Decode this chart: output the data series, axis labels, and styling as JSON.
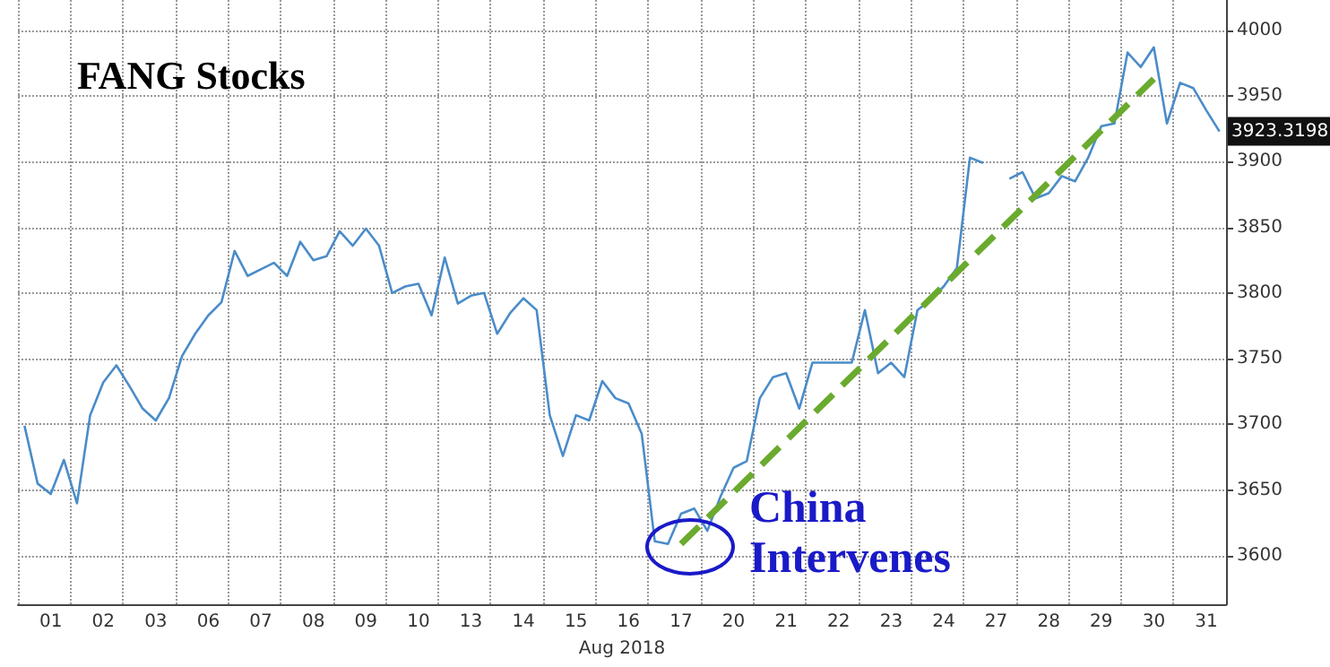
{
  "chart_data": {
    "type": "line",
    "title": "FANG Stocks",
    "xlabel": "Aug 2018",
    "categories": [
      null,
      null,
      "01",
      null,
      null,
      null,
      "02",
      null,
      null,
      null,
      "03",
      null,
      null,
      null,
      "06",
      null,
      null,
      null,
      "07",
      null,
      null,
      null,
      "08",
      null,
      null,
      null,
      "09",
      null,
      null,
      null,
      "10",
      null,
      null,
      null,
      "13",
      null,
      null,
      null,
      "14",
      null,
      null,
      null,
      "15",
      null,
      null,
      null,
      "16",
      null,
      null,
      null,
      "17",
      null,
      null,
      null,
      "20",
      null,
      null,
      null,
      "21",
      null,
      null,
      null,
      "22",
      null,
      null,
      null,
      "23",
      null,
      null,
      null,
      "24",
      null,
      null,
      null,
      "27",
      null,
      null,
      null,
      "28",
      null,
      null,
      null,
      "29",
      null,
      null,
      null,
      "30",
      null,
      null,
      null,
      "31",
      null
    ],
    "series": [
      {
        "color": "#4a8cc9",
        "values": [
          3699,
          3655,
          3647,
          3673,
          3640,
          3707,
          3732,
          3745,
          3729,
          3712,
          3703,
          3720,
          3752,
          3769,
          3783,
          3793,
          3832,
          3813,
          3818,
          3823,
          3813,
          3839,
          3825,
          3828,
          3847,
          3836,
          3849,
          3836,
          3800,
          3805,
          3807,
          3783,
          3827,
          3792,
          3798,
          3800,
          3769,
          3785,
          3796,
          3787,
          3707,
          3676,
          3707,
          3703,
          3733,
          3720,
          3716,
          3693,
          3611,
          3609,
          3632,
          3636,
          3619,
          3645,
          3667,
          3672,
          3720,
          3736,
          3739,
          3712,
          3747,
          3747,
          3747,
          3747,
          3787,
          3739,
          3747,
          3736,
          3787,
          3795,
          3805,
          3819,
          3903,
          3899,
          null,
          3887,
          3892,
          3872,
          3876,
          3889,
          3885,
          3903,
          3927,
          3929,
          3983,
          3972,
          3987,
          3929,
          3960,
          3956,
          3939,
          3923
        ]
      },
      {
        "type": "line",
        "color": "#6aaa2e",
        "line_style": "dashed",
        "x": [
          "17",
          "30"
        ],
        "values": [
          3609,
          3963
        ]
      }
    ],
    "ylim": [
      3563,
      4023
    ],
    "yticks": [
      3600,
      3650,
      3700,
      3750,
      3800,
      3850,
      3900,
      3950,
      4000
    ],
    "grid": true,
    "marker": "none",
    "annotations": [
      "China Intervenes",
      "3923.3198"
    ]
  }
}
